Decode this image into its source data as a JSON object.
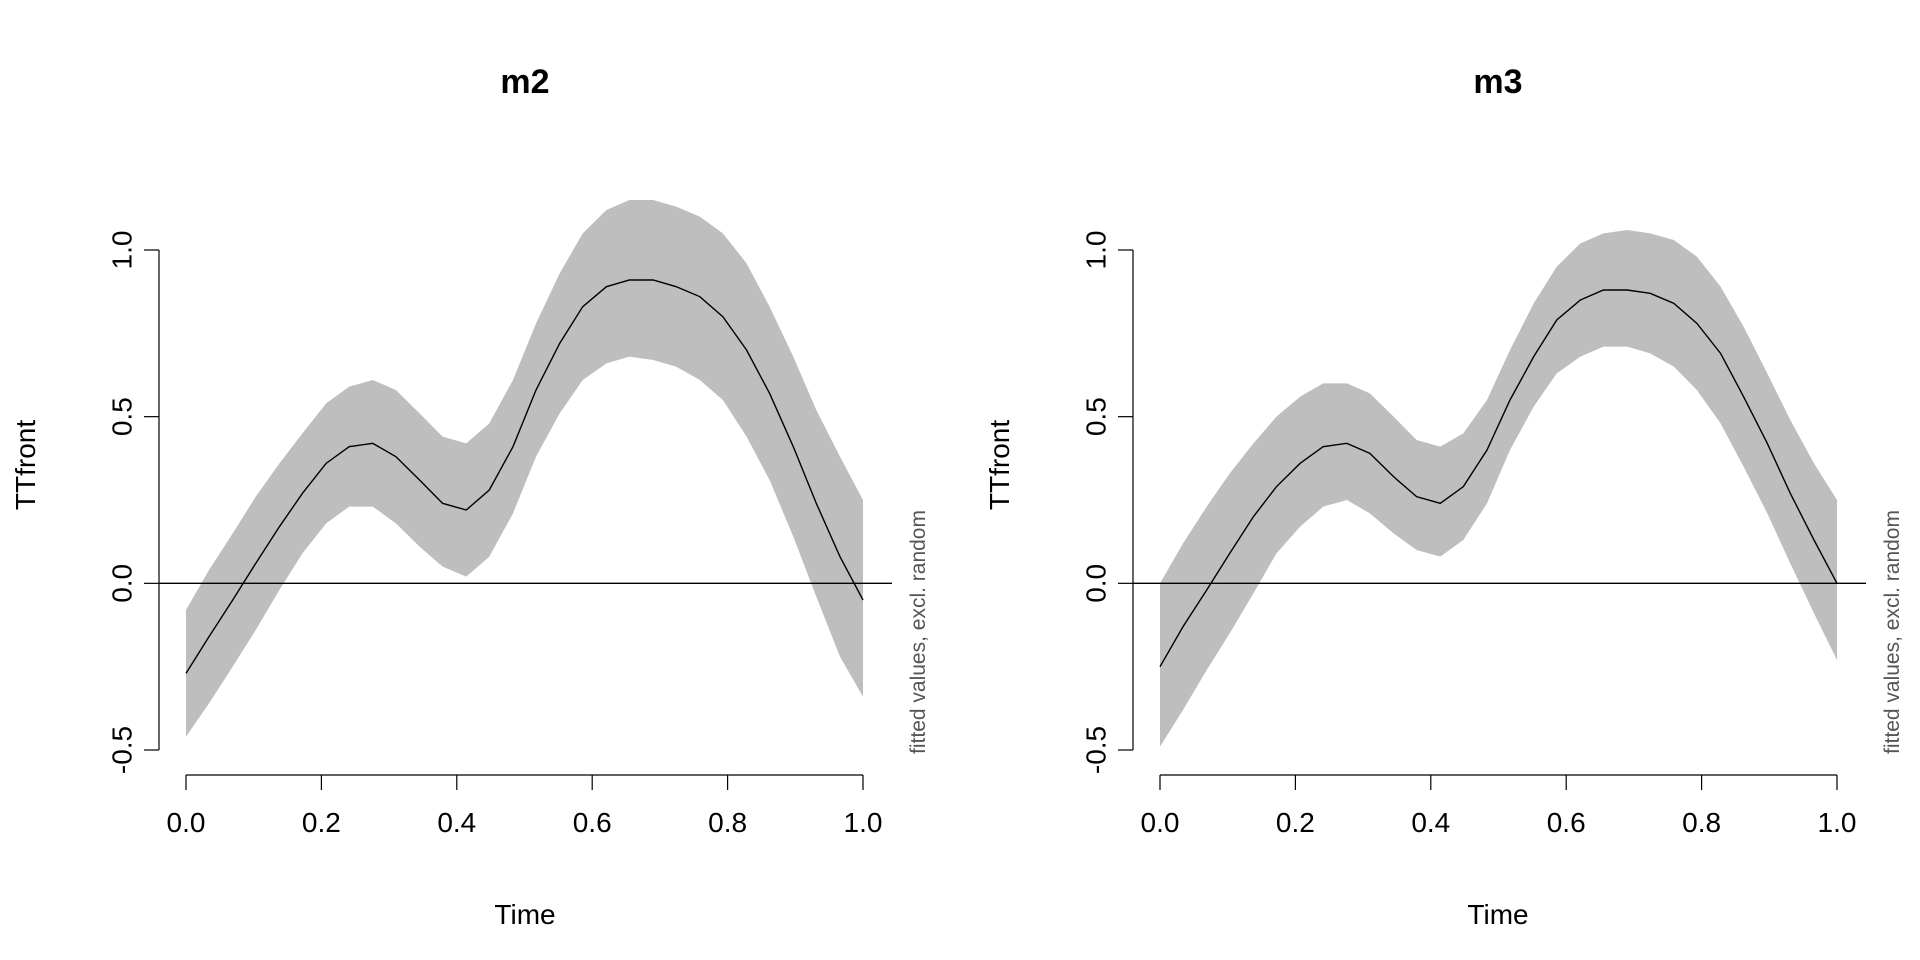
{
  "chart_data": [
    {
      "type": "line",
      "title": "m2",
      "xlabel": "Time",
      "ylabel": "TTfront",
      "note": "fitted values, excl. random",
      "xlim": [
        0,
        1
      ],
      "ylim": [
        -0.5,
        1.0
      ],
      "xticks": [
        "0.0",
        "0.2",
        "0.4",
        "0.6",
        "0.8",
        "1.0"
      ],
      "yticks": [
        "-0.5",
        "0.0",
        "0.5",
        "1.0"
      ],
      "hline": 0,
      "band_color": "#bebebe",
      "x": [
        0.0,
        0.034,
        0.069,
        0.103,
        0.138,
        0.172,
        0.207,
        0.241,
        0.276,
        0.31,
        0.345,
        0.379,
        0.414,
        0.448,
        0.483,
        0.517,
        0.552,
        0.586,
        0.621,
        0.655,
        0.69,
        0.724,
        0.759,
        0.793,
        0.828,
        0.862,
        0.897,
        0.931,
        0.966,
        1.0
      ],
      "fit": [
        -0.27,
        -0.16,
        -0.05,
        0.06,
        0.17,
        0.27,
        0.36,
        0.41,
        0.42,
        0.38,
        0.31,
        0.24,
        0.22,
        0.28,
        0.41,
        0.58,
        0.72,
        0.83,
        0.89,
        0.91,
        0.91,
        0.89,
        0.86,
        0.8,
        0.7,
        0.57,
        0.41,
        0.24,
        0.08,
        -0.05
      ],
      "upper": [
        -0.08,
        0.04,
        0.15,
        0.26,
        0.36,
        0.45,
        0.54,
        0.59,
        0.61,
        0.58,
        0.51,
        0.44,
        0.42,
        0.48,
        0.61,
        0.78,
        0.93,
        1.05,
        1.12,
        1.15,
        1.15,
        1.13,
        1.1,
        1.05,
        0.96,
        0.83,
        0.68,
        0.52,
        0.38,
        0.25
      ],
      "lower": [
        -0.46,
        -0.36,
        -0.25,
        -0.14,
        -0.02,
        0.09,
        0.18,
        0.23,
        0.23,
        0.18,
        0.11,
        0.05,
        0.02,
        0.08,
        0.21,
        0.38,
        0.51,
        0.61,
        0.66,
        0.68,
        0.67,
        0.65,
        0.61,
        0.55,
        0.44,
        0.31,
        0.14,
        -0.04,
        -0.22,
        -0.34
      ]
    },
    {
      "type": "line",
      "title": "m3",
      "xlabel": "Time",
      "ylabel": "TTfront",
      "note": "fitted values, excl. random",
      "xlim": [
        0,
        1
      ],
      "ylim": [
        -0.5,
        1.0
      ],
      "xticks": [
        "0.0",
        "0.2",
        "0.4",
        "0.6",
        "0.8",
        "1.0"
      ],
      "yticks": [
        "-0.5",
        "0.0",
        "0.5",
        "1.0"
      ],
      "hline": 0,
      "band_color": "#bebebe",
      "x": [
        0.0,
        0.034,
        0.069,
        0.103,
        0.138,
        0.172,
        0.207,
        0.241,
        0.276,
        0.31,
        0.345,
        0.379,
        0.414,
        0.448,
        0.483,
        0.517,
        0.552,
        0.586,
        0.621,
        0.655,
        0.69,
        0.724,
        0.759,
        0.793,
        0.828,
        0.862,
        0.897,
        0.931,
        0.966,
        1.0
      ],
      "fit": [
        -0.25,
        -0.13,
        -0.02,
        0.09,
        0.2,
        0.29,
        0.36,
        0.41,
        0.42,
        0.39,
        0.32,
        0.26,
        0.24,
        0.29,
        0.4,
        0.55,
        0.68,
        0.79,
        0.85,
        0.88,
        0.88,
        0.87,
        0.84,
        0.78,
        0.69,
        0.56,
        0.42,
        0.27,
        0.13,
        0.0
      ],
      "upper": [
        0.0,
        0.12,
        0.23,
        0.33,
        0.42,
        0.5,
        0.56,
        0.6,
        0.6,
        0.57,
        0.5,
        0.43,
        0.41,
        0.45,
        0.55,
        0.7,
        0.84,
        0.95,
        1.02,
        1.05,
        1.06,
        1.05,
        1.03,
        0.98,
        0.89,
        0.77,
        0.63,
        0.49,
        0.36,
        0.25
      ],
      "lower": [
        -0.49,
        -0.38,
        -0.26,
        -0.15,
        -0.03,
        0.09,
        0.17,
        0.23,
        0.25,
        0.21,
        0.15,
        0.1,
        0.08,
        0.13,
        0.24,
        0.4,
        0.53,
        0.63,
        0.68,
        0.71,
        0.71,
        0.69,
        0.65,
        0.58,
        0.48,
        0.35,
        0.21,
        0.06,
        -0.09,
        -0.23
      ]
    }
  ]
}
